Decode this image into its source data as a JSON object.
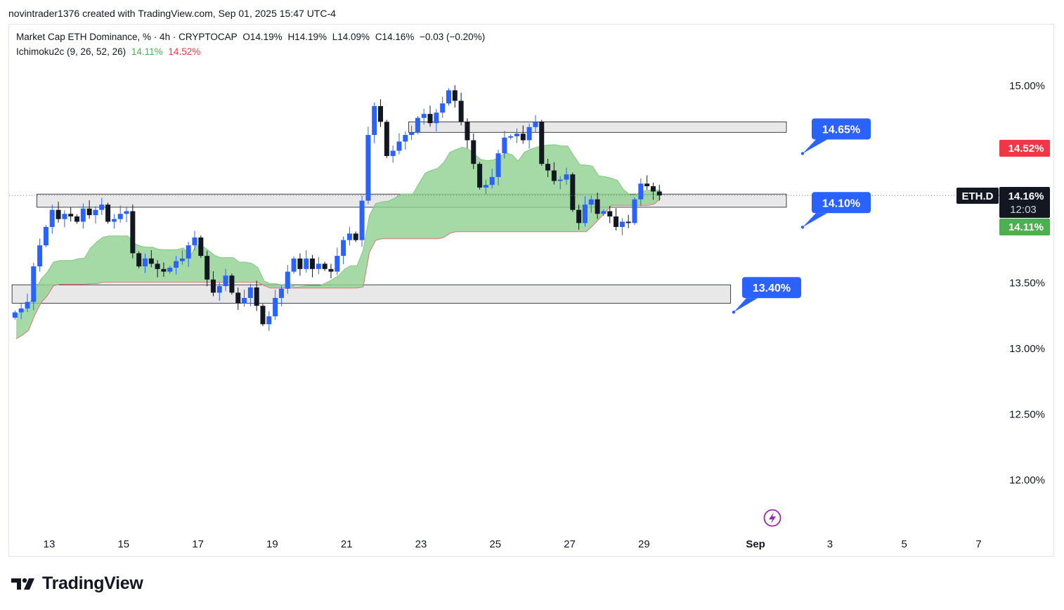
{
  "credit": "novintrader1376 created with TradingView.com, Sep 01, 2025 15:47 UTC-4",
  "legend": {
    "symbol_title": "Market Cap ETH Dominance, % · 4h · CRYPTOCAP",
    "open": "O14.19%",
    "high": "H14.19%",
    "low": "L14.09%",
    "close": "C14.16%",
    "change": "−0.03 (−0.20%)",
    "indicator": "Ichimoku2c (9, 26, 52, 26)",
    "indicator_value_1": "14.11%",
    "indicator_value_2": "14.52%"
  },
  "brand": "TradingView",
  "colors": {
    "up": "#2962ff",
    "down": "#131722",
    "cloud_fill": "#8fcf8f",
    "cloud_edge": "#e57373",
    "callout": "#2962ff",
    "badge_red": "#f23645",
    "badge_green": "#4caf50",
    "badge_dark": "#131722",
    "zone_fill": "#e0e0e0"
  },
  "badges": {
    "symbol": "ETH.D",
    "price": "14.16%",
    "countdown": "12:03",
    "red": "14.52%",
    "green": "14.11%"
  },
  "chart_data": {
    "type": "candlestick",
    "timeframe": "4h",
    "ylim": [
      11.7,
      15.35
    ],
    "y_ticks": [
      {
        "label": "15.00%",
        "value": 15.0
      },
      {
        "label": "13.50%",
        "value": 13.5
      },
      {
        "label": "13.00%",
        "value": 13.0
      },
      {
        "label": "12.50%",
        "value": 12.5
      },
      {
        "label": "12.00%",
        "value": 12.0
      }
    ],
    "x_ticks": [
      {
        "label": "13",
        "day": 13
      },
      {
        "label": "15",
        "day": 15
      },
      {
        "label": "17",
        "day": 17
      },
      {
        "label": "19",
        "day": 19
      },
      {
        "label": "21",
        "day": 21
      },
      {
        "label": "23",
        "day": 23
      },
      {
        "label": "25",
        "day": 25
      },
      {
        "label": "27",
        "day": 27
      },
      {
        "label": "29",
        "day": 29
      },
      {
        "label": "Sep",
        "day": 32
      },
      {
        "label": "3",
        "day": 34
      },
      {
        "label": "5",
        "day": 36
      },
      {
        "label": "7",
        "day": 38
      }
    ],
    "x_domain_days": [
      12.0,
      39.0
    ],
    "levels": [
      {
        "label": "14.65%",
        "value": 14.65
      },
      {
        "label": "14.10%",
        "value": 14.1
      },
      {
        "label": "13.40%",
        "value": 13.4
      }
    ],
    "zones": [
      {
        "top": 14.72,
        "bottom": 14.64,
        "from_day": 22.67,
        "to_day": 32.83
      },
      {
        "top": 14.17,
        "bottom": 14.07,
        "from_day": 12.67,
        "to_day": 32.83
      },
      {
        "top": 13.48,
        "bottom": 13.34,
        "from_day": 12.0,
        "to_day": 31.33
      }
    ],
    "closes": [
      13.27,
      13.3,
      13.35,
      13.62,
      13.78,
      13.92,
      14.05,
      13.98,
      14.02,
      14.0,
      13.96,
      14.06,
      14.01,
      14.05,
      14.09,
      13.96,
      13.98,
      14.02,
      14.04,
      13.72,
      13.62,
      13.68,
      13.64,
      13.6,
      13.58,
      13.61,
      13.66,
      13.68,
      13.78,
      13.84,
      13.7,
      13.52,
      13.42,
      13.47,
      13.55,
      13.42,
      13.34,
      13.38,
      13.46,
      13.32,
      13.18,
      13.24,
      13.38,
      13.45,
      13.58,
      13.68,
      13.6,
      13.68,
      13.6,
      13.64,
      13.6,
      13.58,
      13.7,
      13.82,
      13.87,
      13.82,
      14.12,
      14.62,
      14.84,
      14.72,
      14.46,
      14.5,
      14.57,
      14.62,
      14.64,
      14.75,
      14.78,
      14.71,
      14.79,
      14.86,
      14.96,
      14.88,
      14.72,
      14.58,
      14.4,
      14.22,
      14.24,
      14.3,
      14.48,
      14.6,
      14.61,
      14.63,
      14.58,
      14.68,
      14.72,
      14.4,
      14.35,
      14.27,
      14.28,
      14.32,
      14.05,
      13.95,
      14.09,
      14.13,
      14.02,
      14.04,
      14.0,
      13.92,
      13.96,
      13.95,
      14.13,
      14.25,
      14.23,
      14.19,
      14.16
    ]
  }
}
